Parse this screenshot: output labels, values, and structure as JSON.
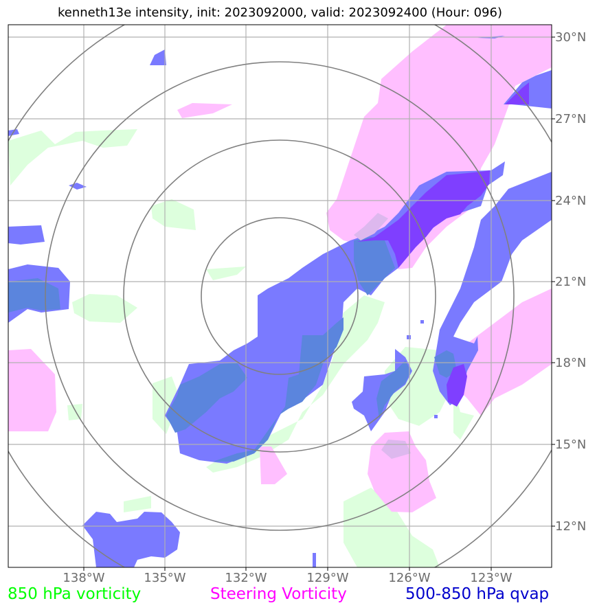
{
  "title": "kenneth13e intensity, init: 2023092000, valid: 2023092400 (Hour: 096)",
  "map": {
    "lon_ticks": [
      "138°W",
      "135°W",
      "132°W",
      "129°W",
      "126°W",
      "123°W"
    ],
    "lat_ticks": [
      "30°N",
      "27°N",
      "24°N",
      "21°N",
      "18°N",
      "15°N",
      "12°N"
    ],
    "range_rings": 4
  },
  "legend": {
    "vort850": {
      "label": "850 hPa vorticity",
      "color": "#00ff00"
    },
    "steering": {
      "label": "Steering Vorticity",
      "color": "#ff00ff"
    },
    "qvap": {
      "label": "500-850 hPa qvap",
      "color": "#0000cc"
    }
  },
  "colors": {
    "vort850_fill": "#ddffdd",
    "steering_fill": "#ffbfff",
    "qvap_fill": "#7a7aff",
    "qvap_dark": "#5b85dd",
    "overlap_fill": "#7f3fff",
    "grid": "#b0b0b0",
    "rings": "#808080"
  }
}
